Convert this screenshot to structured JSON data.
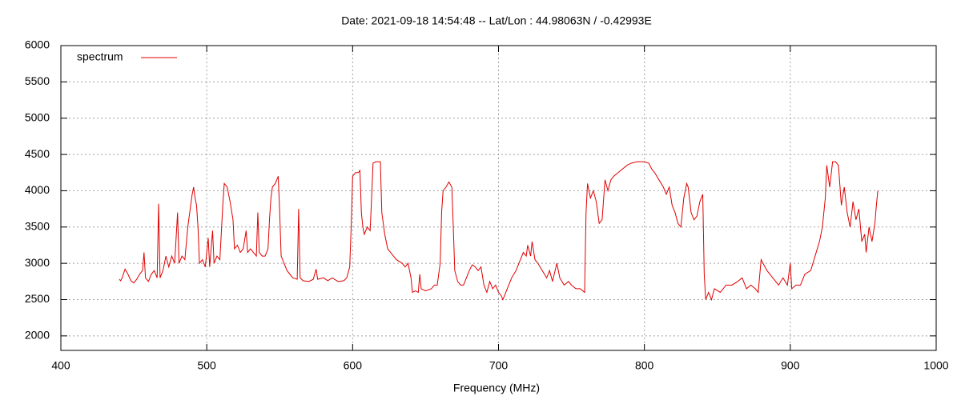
{
  "chart_data": {
    "type": "line",
    "title": "Date: 2021-09-18 14:54:48  --  Lat/Lon : 44.98063N / -0.42993E",
    "x_label": "Frequency (MHz)",
    "x": [
      440,
      441,
      442,
      444,
      446,
      448,
      450,
      452,
      454,
      456,
      457,
      458,
      460,
      462,
      464,
      466,
      467,
      468,
      470,
      472,
      474,
      476,
      478,
      480,
      481,
      483,
      485,
      487,
      489,
      490,
      491,
      492,
      493,
      494,
      495,
      497,
      499,
      501,
      502,
      504,
      505,
      507,
      509,
      511,
      512,
      514,
      516,
      518,
      519,
      521,
      523,
      525,
      527,
      528,
      530,
      532,
      534,
      535,
      536,
      538,
      540,
      542,
      543,
      544,
      545,
      547,
      549,
      550,
      551,
      553,
      555,
      557,
      559,
      562,
      563,
      564,
      566,
      570,
      573,
      575,
      576,
      580,
      583,
      586,
      590,
      594,
      596,
      598,
      599,
      600,
      602,
      604,
      605,
      606,
      607,
      608,
      610,
      612,
      613,
      614,
      616,
      619,
      620,
      622,
      624,
      626,
      628,
      630,
      634,
      636,
      638,
      640,
      641,
      643,
      645,
      646,
      647,
      650,
      654,
      656,
      658,
      660,
      661,
      662,
      664,
      666,
      668,
      669,
      670,
      672,
      674,
      676,
      678,
      680,
      682,
      684,
      686,
      688,
      690,
      692,
      694,
      696,
      698,
      700,
      702,
      703,
      705,
      707,
      709,
      712,
      715,
      717,
      719,
      720,
      722,
      723,
      725,
      727,
      730,
      733,
      735,
      737,
      740,
      742,
      745,
      748,
      750,
      753,
      756,
      759,
      760,
      761,
      763,
      765,
      767,
      769,
      771,
      773,
      775,
      777,
      779,
      782,
      785,
      788,
      791,
      795,
      800,
      803,
      805,
      807,
      810,
      813,
      815,
      817,
      819,
      821,
      823,
      825,
      827,
      829,
      830,
      832,
      834,
      836,
      838,
      840,
      841,
      842,
      844,
      846,
      848,
      852,
      856,
      860,
      864,
      867,
      870,
      873,
      876,
      878,
      880,
      884,
      888,
      892,
      895,
      898,
      900,
      901,
      904,
      907,
      910,
      914,
      917,
      920,
      922,
      924,
      925,
      927,
      929,
      931,
      933,
      935,
      937,
      939,
      941,
      943,
      945,
      947,
      949,
      951,
      952,
      954,
      956,
      958,
      959,
      960
    ],
    "series": [
      {
        "name": "spectrum",
        "color": "#e00000",
        "values": [
          2780,
          2760,
          2800,
          2920,
          2850,
          2760,
          2730,
          2780,
          2850,
          2900,
          3150,
          2800,
          2750,
          2850,
          2900,
          2800,
          3820,
          2800,
          2900,
          3100,
          2950,
          3100,
          3000,
          3700,
          3000,
          3100,
          3050,
          3500,
          3800,
          3950,
          4050,
          3900,
          3800,
          3500,
          3000,
          3050,
          2950,
          3350,
          2950,
          3450,
          3000,
          3100,
          3050,
          3800,
          4100,
          4050,
          3850,
          3600,
          3200,
          3250,
          3150,
          3200,
          3450,
          3150,
          3200,
          3150,
          3100,
          3700,
          3150,
          3100,
          3100,
          3200,
          3600,
          3900,
          4050,
          4100,
          4200,
          3700,
          3100,
          3000,
          2900,
          2850,
          2800,
          2780,
          3750,
          2800,
          2760,
          2750,
          2780,
          2920,
          2780,
          2800,
          2760,
          2800,
          2750,
          2760,
          2800,
          2950,
          3500,
          4200,
          4250,
          4250,
          4280,
          3700,
          3500,
          3400,
          3500,
          3450,
          3900,
          4380,
          4400,
          4400,
          3700,
          3400,
          3200,
          3150,
          3100,
          3050,
          3000,
          2950,
          3000,
          2800,
          2600,
          2620,
          2600,
          2850,
          2650,
          2620,
          2650,
          2700,
          2700,
          3000,
          3700,
          4000,
          4050,
          4120,
          4050,
          3500,
          2900,
          2750,
          2700,
          2700,
          2800,
          2900,
          2980,
          2950,
          2900,
          2950,
          2700,
          2600,
          2750,
          2650,
          2700,
          2600,
          2550,
          2500,
          2600,
          2700,
          2800,
          2900,
          3050,
          3150,
          3100,
          3250,
          3100,
          3300,
          3050,
          3000,
          2900,
          2800,
          2900,
          2750,
          3000,
          2800,
          2700,
          2750,
          2700,
          2650,
          2650,
          2600,
          3700,
          4100,
          3900,
          4000,
          3850,
          3550,
          3600,
          4150,
          4000,
          4150,
          4200,
          4250,
          4300,
          4350,
          4380,
          4400,
          4400,
          4380,
          4300,
          4250,
          4150,
          4050,
          3950,
          4050,
          3800,
          3700,
          3550,
          3500,
          3900,
          4100,
          4050,
          3700,
          3600,
          3650,
          3850,
          3950,
          2850,
          2500,
          2600,
          2500,
          2650,
          2600,
          2700,
          2700,
          2750,
          2800,
          2650,
          2700,
          2650,
          2600,
          3050,
          2900,
          2800,
          2700,
          2800,
          2700,
          3000,
          2650,
          2700,
          2700,
          2850,
          2900,
          3100,
          3300,
          3500,
          3900,
          4350,
          4050,
          4400,
          4400,
          4350,
          3800,
          4050,
          3700,
          3500,
          3850,
          3600,
          3750,
          3300,
          3400,
          3150,
          3500,
          3300,
          3550,
          3800,
          4000
        ]
      }
    ],
    "xlim": [
      400,
      1000
    ],
    "xticks": [
      400,
      500,
      600,
      700,
      800,
      900,
      1000
    ],
    "ylim": [
      1800,
      6000
    ],
    "yticks": [
      2000,
      2500,
      3000,
      3500,
      4000,
      4500,
      5000,
      5500,
      6000
    ],
    "grid": true,
    "legend": "top-left"
  }
}
